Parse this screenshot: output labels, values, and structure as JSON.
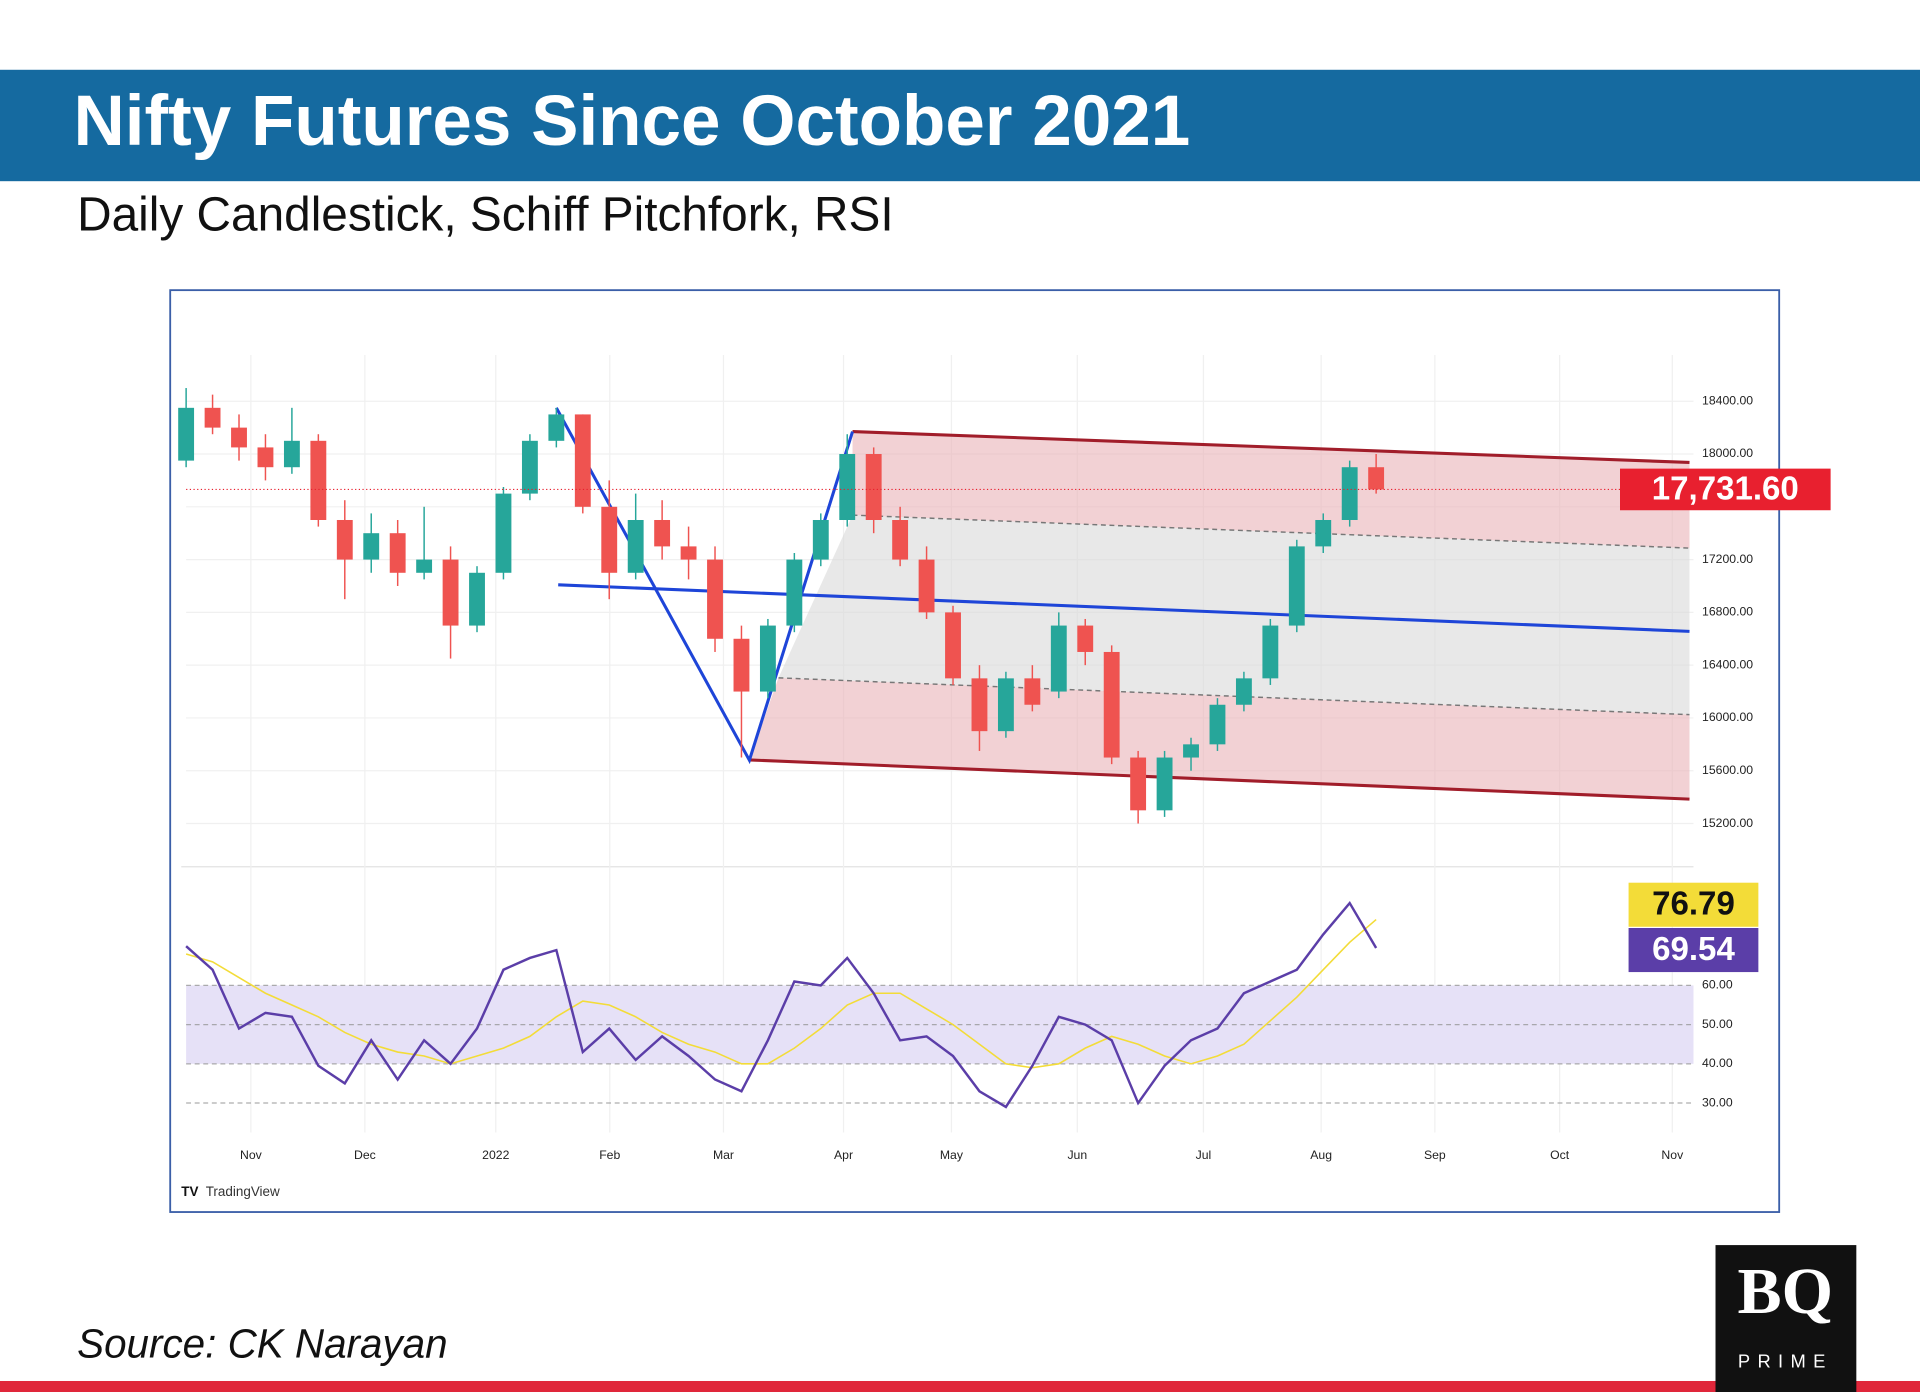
{
  "header": {
    "title": "Nifty Futures Since October 2021",
    "subtitle": "Daily Candlestick, Schiff Pitchfork, RSI"
  },
  "footer": {
    "source": "Source: CK Narayan",
    "watermark": "TradingView",
    "logo": "BQ",
    "logo_sub": "PRIME"
  },
  "chart_data": [
    {
      "type": "candlestick",
      "categories": [
        null,
        null,
        null,
        null,
        null,
        null,
        null,
        null,
        null,
        null,
        null,
        null,
        null,
        null,
        null,
        null,
        null,
        null,
        null,
        null,
        null,
        null,
        null,
        null,
        null,
        null,
        null,
        null,
        null,
        null,
        null,
        null,
        null,
        null,
        null,
        null,
        null,
        null,
        null,
        null,
        null,
        null,
        null,
        null,
        null,
        null
      ],
      "open": [
        17950,
        18350,
        18200,
        18050,
        17900,
        18100,
        17500,
        17200,
        17400,
        17100,
        17200,
        16700,
        17100,
        17700,
        18100,
        18300,
        17600,
        17100,
        17500,
        17300,
        17200,
        16600,
        16200,
        16700,
        17200,
        17500,
        18000,
        17500,
        17200,
        16800,
        16300,
        15900,
        16300,
        16200,
        16700,
        16500,
        15700,
        15300,
        15700,
        15800,
        16100,
        16300,
        16700,
        17300,
        17500,
        17900
      ],
      "high": [
        18500,
        18450,
        18300,
        18150,
        18350,
        18150,
        17650,
        17550,
        17500,
        17600,
        17300,
        17150,
        17750,
        18150,
        18350,
        18300,
        17800,
        17700,
        17650,
        17450,
        17300,
        16700,
        16750,
        17250,
        17550,
        18150,
        18050,
        17600,
        17300,
        16850,
        16400,
        16350,
        16400,
        16800,
        16750,
        16550,
        15750,
        15750,
        15850,
        16150,
        16350,
        16750,
        17350,
        17550,
        17950,
        18000
      ],
      "low": [
        17900,
        18150,
        17950,
        17800,
        17850,
        17450,
        16900,
        17100,
        17000,
        17050,
        16450,
        16650,
        17050,
        17650,
        18050,
        17550,
        16900,
        17050,
        17200,
        17050,
        16500,
        15700,
        16150,
        16650,
        17150,
        17450,
        17400,
        17150,
        16750,
        16250,
        15750,
        15850,
        16050,
        16150,
        16400,
        15650,
        15200,
        15250,
        15600,
        15750,
        16050,
        16250,
        16650,
        17250,
        17450,
        17700
      ],
      "close": [
        18350,
        18200,
        18050,
        17900,
        18100,
        17500,
        17200,
        17400,
        17100,
        17200,
        16700,
        17100,
        17700,
        18100,
        18300,
        17600,
        17100,
        17500,
        17300,
        17200,
        16600,
        16200,
        16700,
        17200,
        17500,
        18000,
        17500,
        17200,
        16800,
        16300,
        15900,
        16300,
        16100,
        16700,
        16500,
        15700,
        15300,
        15700,
        15800,
        16100,
        16300,
        16700,
        17300,
        17500,
        17900,
        17731.6
      ],
      "last_close_label": "17,731.60",
      "up_color": "#26a69a",
      "down_color": "#ef5350",
      "last_color": "#e8202f",
      "xlim": [
        0,
        57
      ],
      "xticks": [
        {
          "value": 2.45,
          "label": "Nov"
        },
        {
          "value": 6.76,
          "label": "Dec"
        },
        {
          "value": 11.71,
          "label": "2022"
        },
        {
          "value": 16.02,
          "label": "Feb"
        },
        {
          "value": 20.32,
          "label": "Mar"
        },
        {
          "value": 24.86,
          "label": "Apr"
        },
        {
          "value": 28.94,
          "label": "May"
        },
        {
          "value": 33.7,
          "label": "Jun"
        },
        {
          "value": 38.47,
          "label": "Jul"
        },
        {
          "value": 42.92,
          "label": "Aug"
        },
        {
          "value": 47.22,
          "label": "Sep"
        },
        {
          "value": 51.94,
          "label": "Oct"
        },
        {
          "value": 56.2,
          "label": "Nov"
        }
      ],
      "ylim": [
        14900,
        18750
      ],
      "yticks": [
        {
          "value": 15200,
          "label": "15200.00"
        },
        {
          "value": 15600,
          "label": "15600.00"
        },
        {
          "value": 16000,
          "label": "16000.00"
        },
        {
          "value": 16400,
          "label": "16400.00"
        },
        {
          "value": 16800,
          "label": "16800.00"
        },
        {
          "value": 17200,
          "label": "17200.00"
        },
        {
          "value": 17600,
          "label": "17600.00"
        },
        {
          "value": 18000,
          "label": "18000.00"
        },
        {
          "value": 18400,
          "label": "18400.00"
        }
      ],
      "grid": true,
      "pitchfork": {
        "pivots": {
          "x": [
            14.0,
            21.3,
            25.2
          ],
          "y": [
            18350,
            15680,
            18170
          ],
          "color": "#1e45d8"
        },
        "median": {
          "x": [
            14.07,
            56.85
          ],
          "y": [
            17009,
            16656
          ],
          "color": "#1e45d8"
        },
        "upper": {
          "x": [
            25.2,
            56.85
          ],
          "y": [
            18170,
            17936
          ],
          "color": "#a11d2a"
        },
        "lower": {
          "x": [
            21.3,
            56.85
          ],
          "y": [
            15682,
            15385
          ],
          "color": "#a11d2a"
        },
        "upper_inner": {
          "x": [
            25.2,
            56.85
          ],
          "y": [
            17537,
            17287
          ],
          "color": "#777777"
        },
        "lower_inner": {
          "x": [
            22.4,
            56.85
          ],
          "y": [
            16304,
            16025
          ],
          "color": "#777777"
        },
        "outer_fill": "#e9b3b8",
        "inner_fill": "#d9d9d9"
      }
    },
    {
      "type": "line",
      "categories": [
        null,
        null,
        null,
        null,
        null,
        null,
        null,
        null,
        null,
        null,
        null,
        null,
        null,
        null,
        null,
        null,
        null,
        null,
        null,
        null,
        null,
        null,
        null,
        null,
        null,
        null,
        null,
        null,
        null,
        null,
        null,
        null,
        null,
        null,
        null,
        null,
        null,
        null,
        null,
        null,
        null,
        null,
        null,
        null,
        null,
        null
      ],
      "series": [
        {
          "color": "#5b3ea8",
          "values": [
            70,
            64,
            49,
            53,
            52,
            39.5,
            35,
            46,
            36,
            46,
            40,
            49,
            64,
            67,
            69,
            43,
            49,
            41,
            47,
            42,
            36,
            33,
            46,
            61,
            60,
            67,
            58,
            46,
            47,
            42,
            33,
            29,
            39.5,
            52,
            50,
            46,
            30,
            39.5,
            46,
            49,
            58,
            61,
            64,
            73,
            81,
            69.54
          ]
        },
        {
          "color": "#f3dc38",
          "values": [
            68,
            66,
            62,
            58,
            55,
            52,
            48,
            45,
            43,
            42,
            40,
            42,
            44,
            47,
            52,
            56,
            55,
            52,
            48,
            45,
            43,
            40,
            40,
            44,
            49,
            55,
            58,
            58,
            54,
            50,
            45,
            40,
            39,
            40,
            44,
            47,
            45,
            42,
            40,
            42,
            45,
            51,
            57,
            64,
            71,
            76.79
          ]
        }
      ],
      "xlim": [
        0,
        57
      ],
      "ylim": [
        22.5,
        89
      ],
      "yticks": [
        {
          "value": 30,
          "label": "30.00"
        },
        {
          "value": 40,
          "label": "40.00"
        },
        {
          "value": 50,
          "label": "50.00"
        },
        {
          "value": 60,
          "label": "60.00"
        }
      ],
      "band": [
        40,
        60
      ],
      "band_color": "#e6e1f7"
    }
  ]
}
